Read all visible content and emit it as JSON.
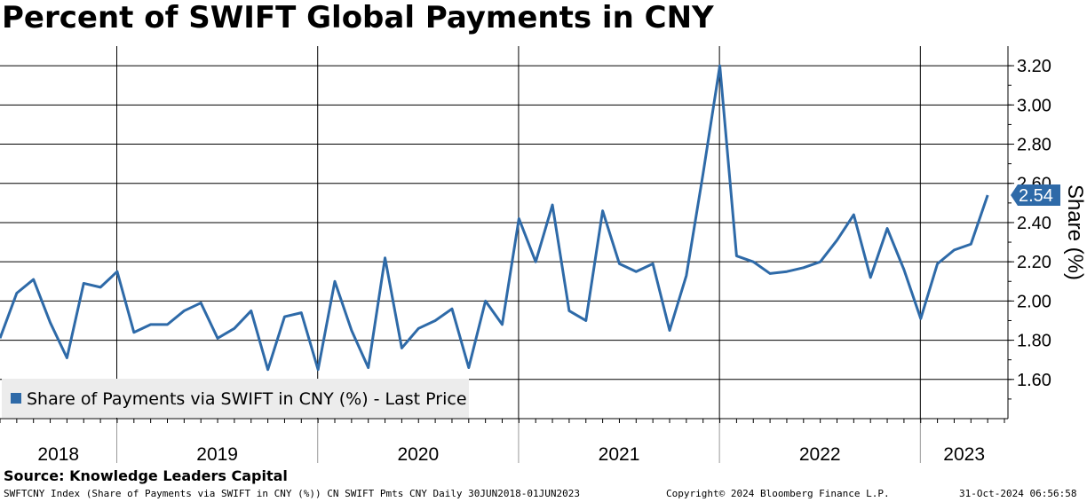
{
  "title": "Percent of SWIFT Global Payments in CNY",
  "source": "Source: Knowledge Leaders Capital",
  "footer": {
    "left": "SWFTCNY Index (Share of Payments via SWIFT in CNY (%)) CN SWIFT Pmts CNY  Daily 30JUN2018-01JUN2023",
    "center": "Copyright© 2024 Bloomberg Finance L.P.",
    "right": "31-Oct-2024 06:56:58"
  },
  "legend": {
    "label": "Share of Payments via SWIFT in CNY (%) - Last Price"
  },
  "last_price_label": "2.54",
  "colors": {
    "line": "#2e6aa8",
    "badge": "#2e6aa8",
    "grid": "#000000",
    "legend_bg": "#ececec"
  },
  "chart_data": {
    "type": "line",
    "title": "Percent of SWIFT Global Payments in CNY",
    "ylabel": "Share (%)",
    "xlabel": "",
    "ylim": [
      1.4,
      3.3
    ],
    "yticks": [
      1.6,
      1.8,
      2.0,
      2.2,
      2.4,
      2.6,
      2.8,
      3.0,
      3.2
    ],
    "ytick_labels": [
      "1.60",
      "1.80",
      "2.00",
      "2.20",
      "2.40",
      "2.60",
      "2.80",
      "3.00",
      "3.20"
    ],
    "x_year_labels": [
      "2018",
      "2019",
      "2020",
      "2021",
      "2022",
      "2023"
    ],
    "grid": true,
    "legend_position": "bottom-left",
    "series": [
      {
        "name": "Share of Payments via SWIFT in CNY (%) - Last Price",
        "x": [
          "2018-06",
          "2018-07",
          "2018-08",
          "2018-09",
          "2018-10",
          "2018-11",
          "2018-12",
          "2019-01",
          "2019-02",
          "2019-03",
          "2019-04",
          "2019-05",
          "2019-06",
          "2019-07",
          "2019-08",
          "2019-09",
          "2019-10",
          "2019-11",
          "2019-12",
          "2020-01",
          "2020-02",
          "2020-03",
          "2020-04",
          "2020-05",
          "2020-06",
          "2020-07",
          "2020-08",
          "2020-09",
          "2020-10",
          "2020-11",
          "2020-12",
          "2021-01",
          "2021-02",
          "2021-03",
          "2021-04",
          "2021-05",
          "2021-06",
          "2021-07",
          "2021-08",
          "2021-09",
          "2021-10",
          "2021-11",
          "2021-12",
          "2022-01",
          "2022-02",
          "2022-03",
          "2022-04",
          "2022-05",
          "2022-06",
          "2022-07",
          "2022-08",
          "2022-09",
          "2022-10",
          "2022-11",
          "2022-12",
          "2023-01",
          "2023-02",
          "2023-03",
          "2023-04",
          "2023-05"
        ],
        "values": [
          1.81,
          2.04,
          2.11,
          1.89,
          1.71,
          2.09,
          2.07,
          2.15,
          1.84,
          1.88,
          1.88,
          1.95,
          1.99,
          1.81,
          1.86,
          1.95,
          1.65,
          1.92,
          1.94,
          1.65,
          2.1,
          1.85,
          1.66,
          2.22,
          1.76,
          1.86,
          1.9,
          1.96,
          1.66,
          2.0,
          1.88,
          2.42,
          2.2,
          2.49,
          1.95,
          1.9,
          2.46,
          2.19,
          2.15,
          2.19,
          1.85,
          2.13,
          2.65,
          3.2,
          2.23,
          2.2,
          2.14,
          2.15,
          2.17,
          2.2,
          2.31,
          2.44,
          2.12,
          2.37,
          2.16,
          1.91,
          2.19,
          2.26,
          2.29,
          2.54
        ]
      }
    ]
  }
}
